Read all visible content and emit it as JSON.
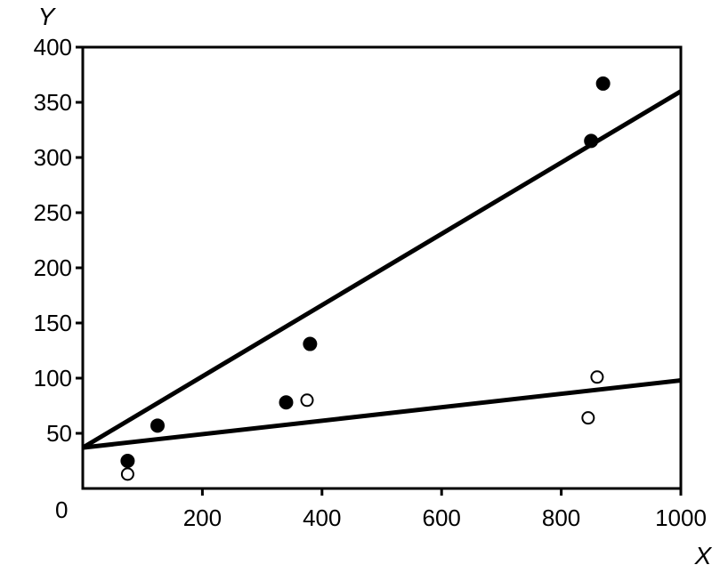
{
  "chart_data": {
    "type": "scatter",
    "title": "",
    "xlabel": "X",
    "ylabel": "Y",
    "xlim": [
      0,
      1000
    ],
    "ylim": [
      0,
      400
    ],
    "x_ticks": [
      200,
      400,
      600,
      800,
      1000
    ],
    "y_ticks": [
      50,
      100,
      150,
      200,
      250,
      300,
      350,
      400
    ],
    "origin_label": "0",
    "grid": false,
    "legend": "none",
    "series": [
      {
        "marker": "filled",
        "color": "#000000",
        "points": [
          {
            "x": 75,
            "y": 25
          },
          {
            "x": 125,
            "y": 57
          },
          {
            "x": 340,
            "y": 78
          },
          {
            "x": 380,
            "y": 131
          },
          {
            "x": 850,
            "y": 315
          },
          {
            "x": 870,
            "y": 367
          }
        ],
        "fit": {
          "x": [
            0,
            1000
          ],
          "y": [
            37,
            360
          ]
        }
      },
      {
        "marker": "open",
        "color": "#000000",
        "points": [
          {
            "x": 75,
            "y": 13
          },
          {
            "x": 375,
            "y": 80
          },
          {
            "x": 845,
            "y": 64
          },
          {
            "x": 860,
            "y": 101
          }
        ],
        "fit": {
          "x": [
            0,
            1000
          ],
          "y": [
            37,
            98
          ]
        }
      }
    ]
  }
}
